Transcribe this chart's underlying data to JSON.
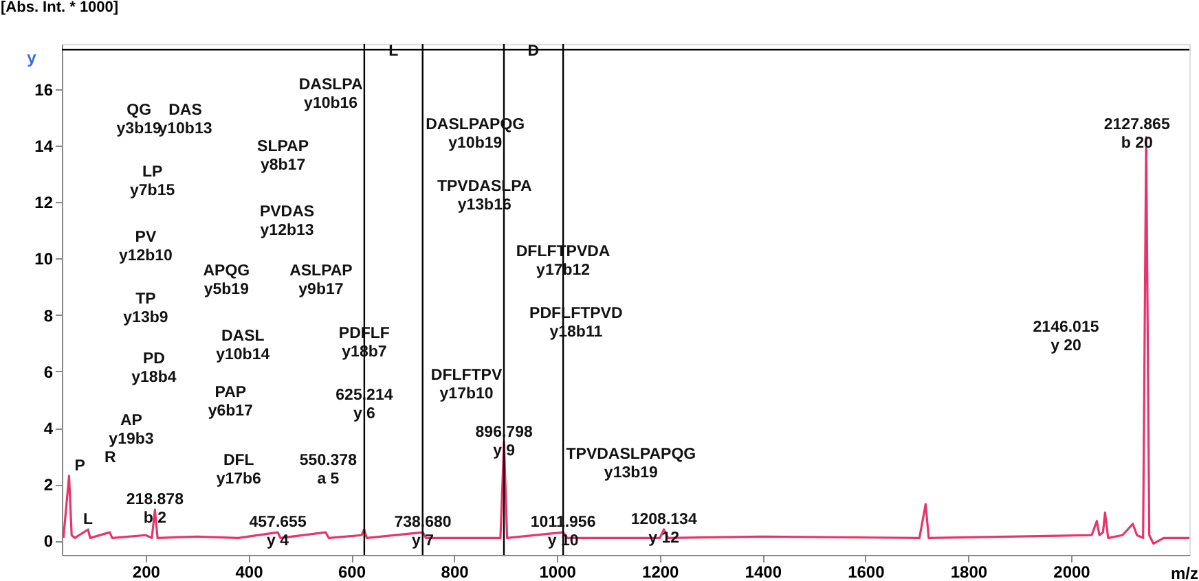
{
  "chart_data": {
    "type": "line",
    "xlabel": "m/z",
    "ylabel": "[Abs. Int. * 1000]",
    "x": [
      40,
      51,
      56,
      62,
      88,
      92,
      130,
      135,
      200,
      212,
      218,
      223,
      300,
      380,
      457,
      462,
      550,
      556,
      620,
      625,
      630,
      739,
      745,
      890,
      897,
      903,
      1012,
      1020,
      1200,
      1208,
      1216,
      1400,
      1705,
      1717,
      1723,
      2040,
      2050,
      2055,
      2062,
      2066,
      2072,
      2100,
      2120,
      2128,
      2140,
      2146,
      2152,
      2160,
      2180,
      2230
    ],
    "series": [
      {
        "color": "#e8336b",
        "values": [
          0.1,
          2.3,
          0.2,
          0.1,
          0.4,
          0.1,
          0.3,
          0.1,
          0.2,
          0.1,
          1.1,
          0.1,
          0.15,
          0.1,
          0.3,
          0.1,
          0.3,
          0.1,
          0.2,
          0.4,
          0.1,
          0.3,
          0.1,
          0.1,
          3.5,
          0.1,
          0.3,
          0.1,
          0.1,
          0.4,
          0.1,
          0.15,
          0.1,
          1.3,
          0.1,
          0.2,
          0.7,
          0.2,
          0.3,
          1.0,
          0.1,
          0.2,
          0.6,
          0.2,
          0.1,
          14.3,
          0.2,
          -0.1,
          0.1,
          0.1
        ]
      }
    ],
    "xlim": [
      37,
      2230
    ],
    "ylim": [
      -0.5,
      17.6
    ],
    "xticks": [
      200,
      400,
      600,
      800,
      1000,
      1200,
      1400,
      1600,
      1800,
      2000
    ],
    "yticks": [
      0,
      2,
      4,
      6,
      8,
      10,
      12,
      14,
      16
    ],
    "ref_lines": [
      {
        "axis": "y",
        "value": 17.4
      },
      {
        "axis": "x",
        "value": 625.214
      },
      {
        "axis": "x",
        "value": 738.68
      },
      {
        "axis": "x",
        "value": 896.798
      },
      {
        "axis": "x",
        "value": 1011.956
      }
    ],
    "annotations": [
      "y",
      "L",
      "D",
      "QG\ny3b19",
      "DAS\ny10b13",
      "DASLPA\ny10b16",
      "LP\ny7b15",
      "SLPAP\ny8b17",
      "PVDAS\ny12b13",
      "PV\ny12b10",
      "APQG\ny5b19",
      "ASLPAP\ny9b17",
      "TP\ny13b9",
      "DASL\ny10b14",
      "PD\ny18b4",
      "PAP\ny6b17",
      "AP\ny19b3",
      "DFL\ny17b6",
      "550.378\na 5",
      "P",
      "R",
      "DASLPAPQG\ny10b19",
      "TPVDASLPA\ny13b16",
      "PDFLFTPVD\ny18b11",
      "DFLFTPV\ny17b10",
      "TPVDASLPAPQG\ny13b19",
      "2127.865\nb 20",
      "2146.015\ny 20",
      {
        "text": "PDFLF\ny18b7",
        "x": 625.214,
        "y": 7.0
      },
      {
        "text": "L",
        "x": 88,
        "y": 0.4
      },
      {
        "text": "218.878\nb 2",
        "x": 218,
        "y": 1.1
      },
      {
        "text": "457.655\ny 4",
        "x": 457,
        "y": 0.3
      },
      {
        "text": "625.214\ny 6",
        "x": 625.214,
        "y": 4.8
      },
      {
        "text": "DFLFTPVDA\ny17b12",
        "x": 1011.956,
        "y": 9.9
      },
      {
        "text": "896.798\ny 9",
        "x": 897,
        "y": 3.5
      },
      {
        "text": "738.680\ny 7",
        "x": 739,
        "y": 0.3
      },
      {
        "text": "1011.956\ny 10",
        "x": 1012,
        "y": 0.3
      },
      {
        "text": "1208.134\ny 12",
        "x": 1208,
        "y": 0.4
      }
    ]
  }
}
